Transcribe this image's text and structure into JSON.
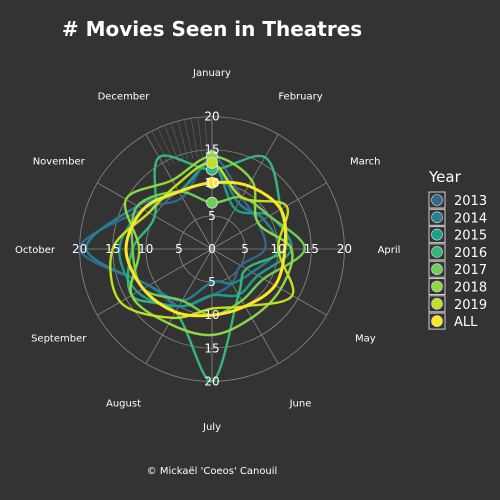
{
  "chart_data": {
    "type": "radar",
    "title": "# Movies Seen in Theatres",
    "months": [
      "January",
      "February",
      "March",
      "April",
      "May",
      "June",
      "July",
      "August",
      "September",
      "October",
      "November",
      "December"
    ],
    "r_ticks": [
      5,
      10,
      15,
      20
    ],
    "r_tick_labels": [
      "5",
      "10",
      "15",
      "20"
    ],
    "r_range": [
      0,
      21
    ],
    "grid": true,
    "legend": {
      "title": "Year",
      "placement": "right"
    },
    "series": [
      {
        "name": "2013",
        "color": "#31688e",
        "values": [
          14,
          9,
          8,
          8,
          5,
          6,
          7,
          10,
          11,
          20,
          12,
          9
        ]
      },
      {
        "name": "2014",
        "color": "#26828e",
        "values": [
          13,
          8,
          9,
          10,
          7,
          6,
          5,
          9,
          11,
          19,
          13,
          10
        ]
      },
      {
        "name": "2015",
        "color": "#1f9e89",
        "values": [
          13,
          7,
          10,
          12,
          8,
          8,
          7,
          10,
          13,
          14,
          12,
          10
        ]
      },
      {
        "name": "2016",
        "color": "#35b779",
        "values": [
          12,
          16,
          12,
          11,
          6,
          8,
          20,
          11,
          14,
          12,
          10,
          16
        ]
      },
      {
        "name": "2017",
        "color": "#6ece58",
        "values": [
          7,
          9,
          10,
          14,
          9,
          9,
          10,
          9,
          12,
          12,
          13,
          10
        ]
      },
      {
        "name": "2018",
        "color": "#8fd744",
        "values": [
          14,
          12,
          8,
          12,
          12,
          12,
          13,
          13,
          14,
          11,
          15,
          12
        ]
      },
      {
        "name": "2019",
        "color": "#c2df23",
        "values": [
          13,
          9,
          13,
          10,
          14,
          10,
          9,
          12,
          16,
          15,
          11,
          11
        ]
      },
      {
        "name": "ALL",
        "color": "#fde725",
        "values": [
          10,
          11,
          12,
          11,
          11,
          10,
          10,
          11,
          12,
          13,
          12,
          10
        ]
      }
    ]
  },
  "copyright": "© Mickaël 'Coeos' Canouil"
}
